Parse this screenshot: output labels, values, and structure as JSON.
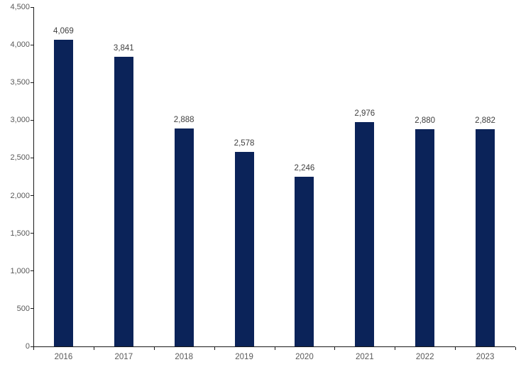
{
  "chart_data": {
    "type": "bar",
    "title": "",
    "categories": [
      "2016",
      "2017",
      "2018",
      "2019",
      "2020",
      "2021",
      "2022",
      "2023"
    ],
    "values": [
      4069,
      3841,
      2888,
      2578,
      2246,
      2976,
      2880,
      2882
    ],
    "value_labels": [
      "4,069",
      "3,841",
      "2,888",
      "2,578",
      "2,246",
      "2,976",
      "2,880",
      "2,882"
    ],
    "xlabel": "",
    "ylabel": "",
    "ylim": [
      0,
      4500
    ],
    "ytick_step": 500,
    "ytick_labels": [
      "0",
      "500",
      "1,000",
      "1,500",
      "2,000",
      "2,500",
      "3,000",
      "3,500",
      "4,000",
      "4,500"
    ],
    "grid": false,
    "legend": false,
    "colors": {
      "bar": "#0b2359",
      "value_label": "#404040",
      "axis_tick_label": "#595959",
      "axis_line": "#1a1a1a",
      "background": "#ffffff"
    }
  }
}
